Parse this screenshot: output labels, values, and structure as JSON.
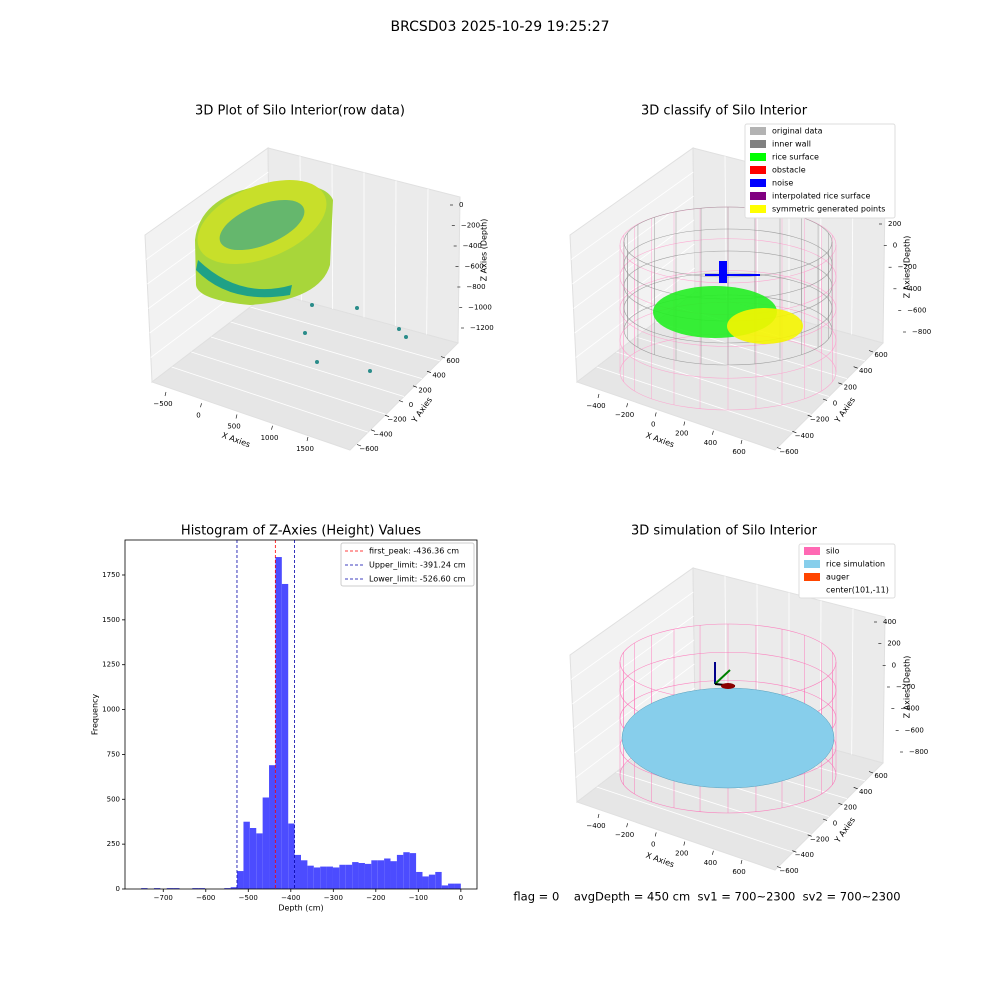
{
  "figure_title": "BRCSD03 2025-10-29 19:25:27",
  "footer": "flag = 0    avgDepth = 450 cm  sv1 = 700~2300  sv2 = 700~2300",
  "chart_data": [
    {
      "type": "scatter3d",
      "title": "3D Plot of Silo Interior(row data)",
      "xlabel": "X Axies",
      "ylabel": "Y Axies",
      "zlabel": "Z Axies (Depth)",
      "xticks": [
        {
          "value": -500,
          "label": "−500"
        },
        0,
        500,
        1000,
        1500
      ],
      "yticks": [
        600,
        400,
        200,
        0,
        {
          "value": -200,
          "label": "−200"
        },
        {
          "value": -400,
          "label": "−400"
        },
        {
          "value": -600,
          "label": "−600"
        }
      ],
      "zticks": [
        0,
        {
          "value": -200,
          "label": "−200"
        },
        {
          "value": -400,
          "label": "−400"
        },
        {
          "value": -600,
          "label": "−600"
        },
        {
          "value": -800,
          "label": "−800"
        },
        {
          "value": -1000,
          "label": "−1000"
        },
        {
          "value": -1200,
          "label": "−1200"
        }
      ]
    },
    {
      "type": "scatter3d",
      "title": "3D classify of Silo Interior",
      "xlabel": "X Axies",
      "ylabel": "Y Axies",
      "zlabel": "Z Axies (Depth)",
      "legend": {
        "loc": "upper right",
        "entries": [
          {
            "name": "original data",
            "color": "#b3b3b3"
          },
          {
            "name": "inner wall",
            "color": "#808080"
          },
          {
            "name": "rice surface",
            "color": "#00ff00"
          },
          {
            "name": "obstacle",
            "color": "#ff0000"
          },
          {
            "name": "noise",
            "color": "#0000ff"
          },
          {
            "name": "interpolated rice surface",
            "color": "#800080"
          },
          {
            "name": "symmetric generated points",
            "color": "#ffff00"
          }
        ]
      },
      "xticks": [
        {
          "value": -400,
          "label": "−400"
        },
        {
          "value": -200,
          "label": "−200"
        },
        0,
        200,
        400,
        600
      ],
      "yticks": [
        600,
        400,
        200,
        0,
        {
          "value": -200,
          "label": "−200"
        },
        {
          "value": -400,
          "label": "−400"
        },
        {
          "value": -600,
          "label": "−600"
        }
      ],
      "zticks": [
        200,
        0,
        {
          "value": -200,
          "label": "−200"
        },
        {
          "value": -400,
          "label": "−400"
        },
        {
          "value": -600,
          "label": "−600"
        },
        {
          "value": -800,
          "label": "−800"
        }
      ]
    },
    {
      "type": "histogram",
      "title": "Histogram of Z-Axies (Height) Values",
      "xlabel": "Depth (cm)",
      "ylabel": "Frequency",
      "color": "#4c4cff",
      "bins": [
        -752.0,
        -736.96,
        -721.92,
        -706.88,
        -691.84,
        -676.8,
        -661.76,
        -646.72,
        -631.68,
        -616.64,
        -601.6,
        -586.56,
        -571.52,
        -556.48,
        -541.44,
        -526.4,
        -511.36,
        -496.32,
        -481.28,
        -466.24,
        -451.2,
        -436.16,
        -421.12,
        -406.08,
        -391.04,
        -376.0,
        -360.96,
        -345.92,
        -330.88,
        -315.84,
        -300.8,
        -285.76,
        -270.72,
        -255.68,
        -240.64,
        -225.6,
        -210.56,
        -195.52,
        -180.48,
        -165.44,
        -150.4,
        -135.36,
        -120.32,
        -105.28,
        -90.24,
        -75.2,
        -60.16,
        -45.12,
        -30.08,
        -15.04,
        0.0
      ],
      "counts": [
        5,
        0,
        5,
        0,
        5,
        5,
        0,
        0,
        5,
        5,
        0,
        0,
        0,
        5,
        10,
        100,
        375,
        340,
        310,
        510,
        690,
        1850,
        1700,
        365,
        190,
        160,
        130,
        120,
        125,
        125,
        120,
        135,
        135,
        150,
        145,
        140,
        160,
        160,
        170,
        155,
        190,
        205,
        200,
        95,
        70,
        80,
        95,
        20,
        30,
        30
      ],
      "xlim": [
        -790,
        38
      ],
      "ylim": [
        0,
        1945
      ],
      "xticks": [
        {
          "value": -700,
          "label": "−700"
        },
        {
          "value": -600,
          "label": "−600"
        },
        {
          "value": -500,
          "label": "−500"
        },
        {
          "value": -400,
          "label": "−400"
        },
        {
          "value": -300,
          "label": "−300"
        },
        {
          "value": -200,
          "label": "−200"
        },
        {
          "value": -100,
          "label": "−100"
        },
        0
      ],
      "yticks": [
        0,
        250,
        500,
        750,
        1000,
        1250,
        1500,
        1750
      ],
      "legend": {
        "loc": "upper right"
      },
      "vlines": [
        {
          "name": "first_peak: -436.36 cm",
          "value": -436.36,
          "color": "#ff0000"
        },
        {
          "name": "Upper_limit: -391.24 cm",
          "value": -391.24,
          "color": "#0000aa"
        },
        {
          "name": "Lower_limit: -526.60 cm",
          "value": -526.6,
          "color": "#0000aa"
        }
      ]
    },
    {
      "type": "surface3d",
      "title": "3D simulation of Silo Interior",
      "xlabel": "X Axies",
      "ylabel": "Y Axies",
      "zlabel": "Z Axies (Depth)",
      "legend": {
        "loc": "upper right",
        "entries": [
          {
            "name": "silo",
            "color": "#ff69b4"
          },
          {
            "name": "rice simulation",
            "color": "#87ceeb"
          },
          {
            "name": "auger",
            "color": "#ff4500"
          },
          {
            "name": "center(101,-11)"
          }
        ]
      },
      "xticks": [
        {
          "value": -400,
          "label": "−400"
        },
        {
          "value": -200,
          "label": "−200"
        },
        0,
        200,
        400,
        600
      ],
      "yticks": [
        600,
        400,
        200,
        0,
        {
          "value": -200,
          "label": "−200"
        },
        {
          "value": -400,
          "label": "−400"
        },
        {
          "value": -600,
          "label": "−600"
        }
      ],
      "zticks": [
        400,
        200,
        0,
        {
          "value": -200,
          "label": "−200"
        },
        {
          "value": -400,
          "label": "−400"
        },
        {
          "value": -600,
          "label": "−600"
        },
        {
          "value": -800,
          "label": "−800"
        }
      ]
    }
  ]
}
